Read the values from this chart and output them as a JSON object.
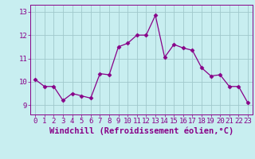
{
  "x": [
    0,
    1,
    2,
    3,
    4,
    5,
    6,
    7,
    8,
    9,
    10,
    11,
    12,
    13,
    14,
    15,
    16,
    17,
    18,
    19,
    20,
    21,
    22,
    23
  ],
  "y": [
    10.1,
    9.8,
    9.8,
    9.2,
    9.5,
    9.4,
    9.3,
    10.35,
    10.3,
    11.5,
    11.65,
    12.0,
    12.0,
    12.85,
    11.05,
    11.6,
    11.45,
    11.35,
    10.6,
    10.25,
    10.3,
    9.8,
    9.8,
    9.1
  ],
  "line_color": "#880088",
  "marker": "D",
  "marker_size": 2.5,
  "bg_color": "#c8eef0",
  "grid_color": "#a0c8cc",
  "xlabel": "Windchill (Refroidissement éolien,°C)",
  "xlim": [
    -0.5,
    23.5
  ],
  "ylim": [
    8.6,
    13.3
  ],
  "yticks": [
    9,
    10,
    11,
    12,
    13
  ],
  "xticks": [
    0,
    1,
    2,
    3,
    4,
    5,
    6,
    7,
    8,
    9,
    10,
    11,
    12,
    13,
    14,
    15,
    16,
    17,
    18,
    19,
    20,
    21,
    22,
    23
  ],
  "tick_color": "#880088",
  "font_size": 6.5
}
